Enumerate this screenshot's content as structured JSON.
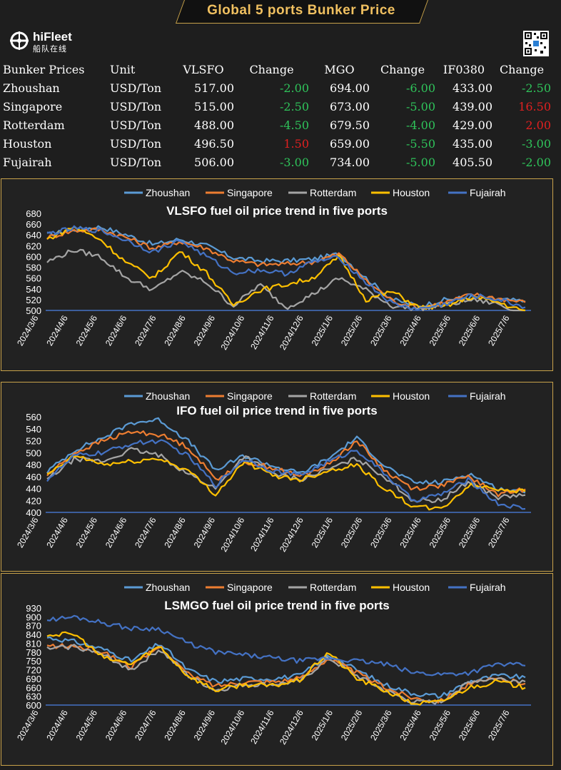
{
  "header": {
    "title": "Global 5 ports  Bunker Price"
  },
  "logo": {
    "name": "hiFleet",
    "subtitle": "船队在线"
  },
  "colors": {
    "zhoushan": "#5b9bd5",
    "singapore": "#ed7d31",
    "rotterdam": "#a5a5a5",
    "houston": "#ffc000",
    "fujairah": "#4472c4",
    "neg": "#2fc35a",
    "pos": "#e02020",
    "border": "#c8a24a"
  },
  "table": {
    "headers": [
      "Bunker Prices",
      "Unit",
      "VLSFO",
      "Change",
      "MGO",
      "Change",
      "IF0380",
      "Change"
    ],
    "rows": [
      [
        "Zhoushan",
        "USD/Ton",
        "517.00",
        "-2.00",
        "694.00",
        "-6.00",
        "433.00",
        "-2.50"
      ],
      [
        "Singapore",
        "USD/Ton",
        "515.00",
        "-2.50",
        "673.00",
        "-5.00",
        "439.00",
        "16.50"
      ],
      [
        "Rotterdam",
        "USD/Ton",
        "488.00",
        "-4.50",
        "679.50",
        "-4.00",
        "429.00",
        "2.00"
      ],
      [
        "Houston",
        "USD/Ton",
        "496.50",
        "1.50",
        "659.00",
        "-5.50",
        "435.00",
        "-3.00"
      ],
      [
        "Fujairah",
        "USD/Ton",
        "506.00",
        "-3.00",
        "734.00",
        "-5.00",
        "405.50",
        "-2.00"
      ]
    ]
  },
  "chart_data": [
    {
      "type": "line",
      "title": "VLSFO fuel oil price trend in five ports",
      "ylim": [
        500,
        680
      ],
      "yticks": [
        "500",
        "520",
        "540",
        "560",
        "580",
        "600",
        "620",
        "640",
        "660",
        "680"
      ],
      "x_labels": [
        "2024/3/6",
        "2024/4/6",
        "2024/5/6",
        "2024/6/6",
        "2024/7/6",
        "2024/8/6",
        "2024/9/6",
        "2024/10/6",
        "2024/11/6",
        "2024/12/6",
        "2025/1/6",
        "2025/2/6",
        "2025/3/6",
        "2025/4/6",
        "2025/5/6",
        "2025/6/6",
        "2025/7/6"
      ],
      "legend_position": "top",
      "series": [
        {
          "name": "Zhoushan",
          "values": [
            640,
            650,
            655,
            640,
            622,
            632,
            620,
            598,
            592,
            592,
            595,
            605,
            560,
            520,
            508,
            520,
            525,
            520,
            517
          ]
        },
        {
          "name": "Singapore",
          "values": [
            635,
            648,
            650,
            635,
            615,
            628,
            615,
            592,
            585,
            586,
            590,
            605,
            555,
            518,
            505,
            515,
            530,
            522,
            515
          ]
        },
        {
          "name": "Rotterdam",
          "values": [
            590,
            612,
            600,
            560,
            538,
            572,
            552,
            508,
            548,
            505,
            530,
            560,
            538,
            508,
            503,
            510,
            520,
            512,
            488
          ]
        },
        {
          "name": "Houston",
          "values": [
            632,
            655,
            632,
            588,
            560,
            610,
            570,
            510,
            538,
            548,
            560,
            600,
            520,
            535,
            505,
            508,
            525,
            515,
            497
          ]
        },
        {
          "name": "Fujairah",
          "values": [
            642,
            652,
            648,
            630,
            608,
            630,
            600,
            570,
            575,
            568,
            590,
            598,
            552,
            512,
            502,
            512,
            528,
            520,
            506
          ]
        }
      ]
    },
    {
      "type": "line",
      "title": "IFO fuel oil price trend in five ports",
      "ylim": [
        400,
        560
      ],
      "yticks": [
        "400",
        "420",
        "440",
        "460",
        "480",
        "500",
        "520",
        "540",
        "560"
      ],
      "x_labels": [
        "2024/3/6",
        "2024/4/6",
        "2024/5/6",
        "2024/6/6",
        "2024/7/6",
        "2024/8/6",
        "2024/9/6",
        "2024/10/6",
        "2024/11/6",
        "2024/12/6",
        "2025/1/6",
        "2025/2/6",
        "2025/3/6",
        "2025/4/6",
        "2025/5/6",
        "2025/6/6",
        "2025/7/6"
      ],
      "legend_position": "top",
      "series": [
        {
          "name": "Zhoushan",
          "values": [
            468,
            505,
            525,
            550,
            555,
            520,
            470,
            495,
            478,
            465,
            490,
            525,
            478,
            450,
            450,
            465,
            440,
            433
          ]
        },
        {
          "name": "Singapore",
          "values": [
            462,
            500,
            520,
            535,
            530,
            510,
            455,
            485,
            475,
            460,
            480,
            520,
            470,
            440,
            445,
            460,
            430,
            439
          ]
        },
        {
          "name": "Rotterdam",
          "values": [
            455,
            490,
            485,
            505,
            495,
            465,
            440,
            495,
            465,
            455,
            472,
            490,
            460,
            420,
            420,
            452,
            425,
            429
          ]
        },
        {
          "name": "Houston",
          "values": [
            462,
            495,
            480,
            485,
            490,
            470,
            430,
            485,
            462,
            455,
            470,
            480,
            440,
            410,
            405,
            445,
            440,
            435
          ]
        },
        {
          "name": "Fujairah",
          "values": [
            455,
            495,
            500,
            515,
            520,
            495,
            445,
            490,
            470,
            462,
            485,
            505,
            465,
            420,
            430,
            455,
            415,
            406
          ]
        }
      ]
    },
    {
      "type": "line",
      "title": "LSMGO fuel oil price trend in five ports",
      "ylim": [
        600,
        930
      ],
      "yticks": [
        "600",
        "630",
        "660",
        "690",
        "720",
        "750",
        "780",
        "810",
        "840",
        "870",
        "900",
        "930"
      ],
      "x_labels": [
        "2024/3/6",
        "2024/4/6",
        "2024/5/6",
        "2024/6/6",
        "2024/7/6",
        "2024/8/6",
        "2024/9/6",
        "2024/10/6",
        "2024/11/6",
        "2024/12/6",
        "2025/1/6",
        "2025/2/6",
        "2025/3/6",
        "2025/4/6",
        "2025/5/6",
        "2025/6/6",
        "2025/7/6"
      ],
      "legend_position": "top",
      "series": [
        {
          "name": "Zhoushan",
          "values": [
            830,
            815,
            790,
            750,
            810,
            720,
            680,
            690,
            690,
            700,
            770,
            720,
            670,
            640,
            630,
            680,
            700,
            694
          ]
        },
        {
          "name": "Singapore",
          "values": [
            800,
            800,
            780,
            730,
            800,
            705,
            665,
            680,
            680,
            690,
            760,
            710,
            660,
            625,
            615,
            670,
            690,
            673
          ]
        },
        {
          "name": "Rotterdam",
          "values": [
            790,
            800,
            770,
            720,
            790,
            700,
            650,
            670,
            670,
            680,
            760,
            700,
            650,
            610,
            610,
            680,
            690,
            680
          ]
        },
        {
          "name": "Houston",
          "values": [
            840,
            840,
            760,
            740,
            800,
            700,
            650,
            670,
            665,
            685,
            780,
            690,
            650,
            605,
            610,
            660,
            680,
            659
          ]
        },
        {
          "name": "Fujairah",
          "values": [
            890,
            900,
            880,
            860,
            860,
            810,
            780,
            770,
            760,
            750,
            760,
            750,
            740,
            710,
            705,
            710,
            740,
            734
          ]
        }
      ]
    }
  ]
}
